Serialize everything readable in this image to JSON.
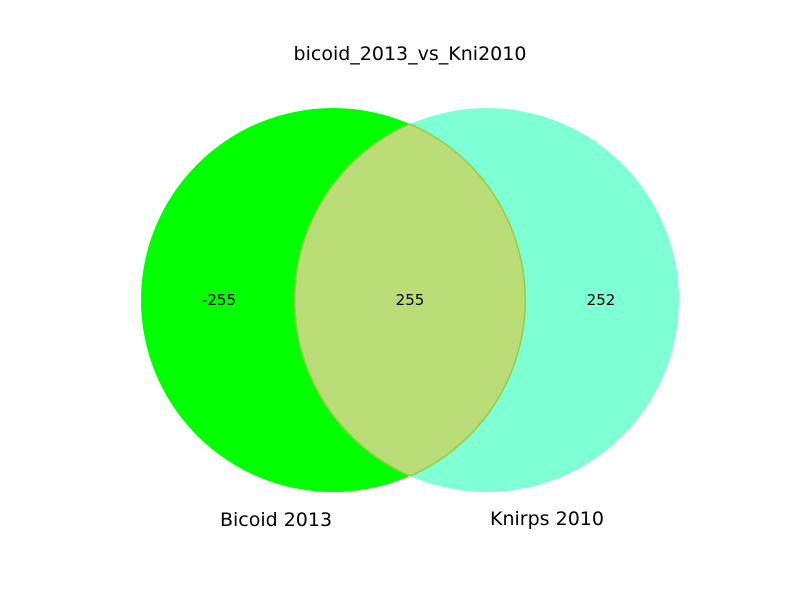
{
  "chart_data": {
    "type": "venn",
    "title": "bicoid_2013_vs_Kni2010",
    "sets": [
      {
        "name": "Bicoid 2013",
        "color": "#00ff00"
      },
      {
        "name": "Knirps 2010",
        "color": "#7fffd4"
      }
    ],
    "regions": {
      "left_only": "-255",
      "intersection": "255",
      "right_only": "252"
    },
    "intersection_color": "#bbdd77",
    "intersection_border_color": "#99cc44"
  }
}
